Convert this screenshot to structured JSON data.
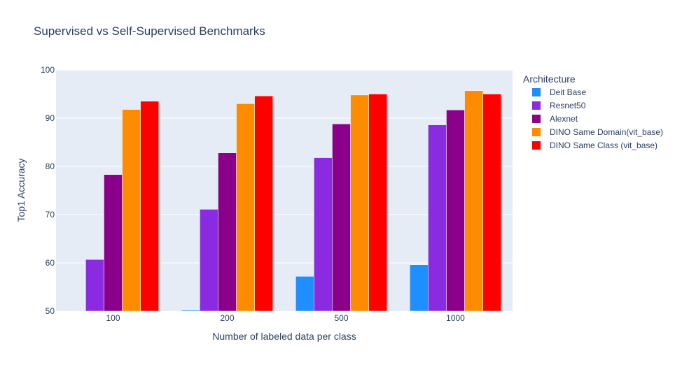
{
  "chart_data": {
    "type": "bar",
    "title": "Supervised vs Self-Supervised Benchmarks",
    "xlabel": "Number of labeled data per class",
    "ylabel": "Top1 Accuracy",
    "categories": [
      "100",
      "200",
      "500",
      "1000"
    ],
    "ylim": [
      50,
      100
    ],
    "yticks": [
      50,
      60,
      70,
      80,
      90,
      100
    ],
    "grid": true,
    "legend": {
      "title": "Architecture",
      "position": "right"
    },
    "series": [
      {
        "name": "Deit Base",
        "color": "#1f8fff",
        "values": [
          null,
          50.2,
          57.2,
          59.6
        ]
      },
      {
        "name": "Resnet50",
        "color": "#8a2be2",
        "values": [
          60.7,
          71.1,
          81.8,
          88.6
        ]
      },
      {
        "name": "Alexnet",
        "color": "#8b008b",
        "values": [
          78.3,
          82.8,
          88.8,
          91.7
        ]
      },
      {
        "name": "DINO Same Domain(vit_base)",
        "color": "#ff8c00",
        "values": [
          91.8,
          93.0,
          94.8,
          95.7
        ]
      },
      {
        "name": "DINO Same Class (vit_base)",
        "color": "#ff0000",
        "values": [
          93.5,
          94.6,
          95.0,
          95.0
        ]
      }
    ]
  }
}
